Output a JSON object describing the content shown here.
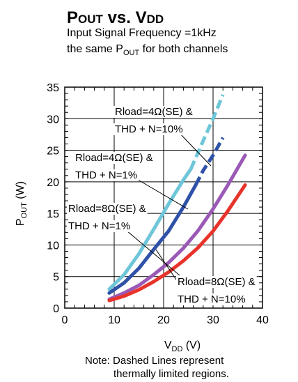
{
  "header": {
    "title_main": "P",
    "title_sub": "OUT",
    "title_mid": " vs. V",
    "title_sub2": "DD",
    "subtitle_line1": "Input Signal Frequency =1kHz",
    "subtitle_line2_pre": "the same P",
    "subtitle_line2_sub": "OUT",
    "subtitle_line2_post": " for both channels"
  },
  "axes": {
    "y_label_main": "P",
    "y_label_sub": "OUT",
    "y_label_unit": " (W)",
    "x_label_main": "V",
    "x_label_sub": "DD",
    "x_label_unit": " (V)"
  },
  "note": {
    "line1": "Note: Dashed Lines represent",
    "line2": "thermally limited regions."
  },
  "annotations": [
    {
      "line1": "Rload=4Ω(SE) &",
      "line2": "THD + N=10%"
    },
    {
      "line1": "Rload=4Ω(SE) &",
      "line2": "THD + N=1%"
    },
    {
      "line1": "Rload=8Ω(SE) &",
      "line2": "THD + N=1%"
    },
    {
      "line1": "Rload=8Ω(SE) &",
      "line2": "THD + N=10%"
    }
  ],
  "chart_data": {
    "type": "line",
    "title": "POUT vs. VDD",
    "xlabel": "VDD (V)",
    "ylabel": "POUT (W)",
    "xlim": [
      0,
      40
    ],
    "ylim": [
      0,
      35
    ],
    "xticks": [
      0,
      10,
      20,
      30,
      40
    ],
    "yticks": [
      0,
      5,
      10,
      15,
      20,
      25,
      30,
      35
    ],
    "grid": true,
    "series": [
      {
        "color": "#6ec6d8",
        "solid": {
          "x": [
            9,
            12,
            15,
            18,
            21,
            24,
            25.5
          ],
          "y": [
            3,
            5.3,
            8.6,
            12.5,
            16.5,
            20.3,
            22.0
          ]
        },
        "dashed": {
          "x": [
            25.5,
            28,
            30,
            32
          ],
          "y": [
            22.0,
            26.5,
            30.0,
            33.8
          ]
        }
      },
      {
        "color": "#2f52a8",
        "solid": {
          "x": [
            9,
            12,
            15,
            18,
            21,
            24,
            26.5
          ],
          "y": [
            2.4,
            4.0,
            6.3,
            9.3,
            12.2,
            16.0,
            19.5
          ]
        },
        "dashed": {
          "x": [
            26.5,
            28,
            30,
            32
          ],
          "y": [
            19.5,
            21.8,
            24.2,
            27.0
          ]
        }
      },
      {
        "color": "#9b59b6",
        "solid": {
          "x": [
            9,
            12,
            15,
            18,
            21,
            24,
            27,
            30,
            33,
            36.5
          ],
          "y": [
            1.4,
            2.4,
            3.6,
            5.3,
            7.2,
            9.5,
            12.3,
            15.7,
            19.5,
            24.2
          ]
        },
        "dashed": null
      },
      {
        "color": "#e8332a",
        "solid": {
          "x": [
            9,
            12,
            15,
            18,
            21,
            24,
            27,
            30,
            33,
            36.5
          ],
          "y": [
            1.2,
            1.9,
            2.9,
            4.2,
            5.7,
            7.5,
            9.6,
            12.2,
            15.4,
            19.5
          ]
        },
        "dashed": null
      }
    ]
  }
}
